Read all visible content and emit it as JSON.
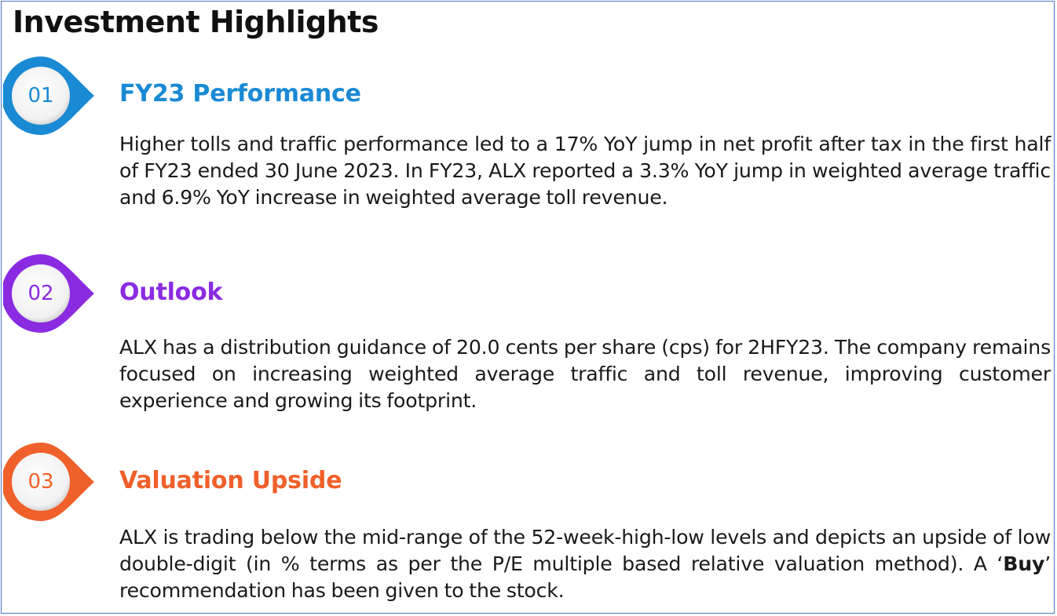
{
  "page_title": "Investment Highlights",
  "colors": {
    "frame_border": "#4a78c8",
    "blue": "#1a8ad4",
    "purple": "#8a2be2",
    "orange": "#f0602a"
  },
  "sections": [
    {
      "number": "01",
      "heading": "FY23 Performance",
      "color": "#1a8ad4",
      "icon": "numbered-badge-icon",
      "text": "Higher tolls and traffic performance led to a 17% YoY jump in net profit after tax in the first half of FY23 ended 30 June 2023. In FY23, ALX reported a 3.3% YoY jump in weighted average traffic and 6.9% YoY increase in weighted average toll revenue."
    },
    {
      "number": "02",
      "heading": "Outlook",
      "color": "#8a2be2",
      "icon": "numbered-badge-icon",
      "text": "ALX has a distribution guidance of 20.0 cents per share (cps) for 2HFY23. The company remains focused on increasing weighted average traffic and toll revenue, improving customer experience and growing its footprint."
    },
    {
      "number": "03",
      "heading": "Valuation Upside",
      "color": "#f0602a",
      "icon": "numbered-badge-icon",
      "text_before": "ALX is trading below the mid-range of the 52-week-high-low levels and depicts an upside of low double-digit (in % terms as per the P/E multiple based relative valuation method). A ‘",
      "text_bold": "Buy",
      "text_after": "’ recommendation has been given to the stock."
    }
  ]
}
